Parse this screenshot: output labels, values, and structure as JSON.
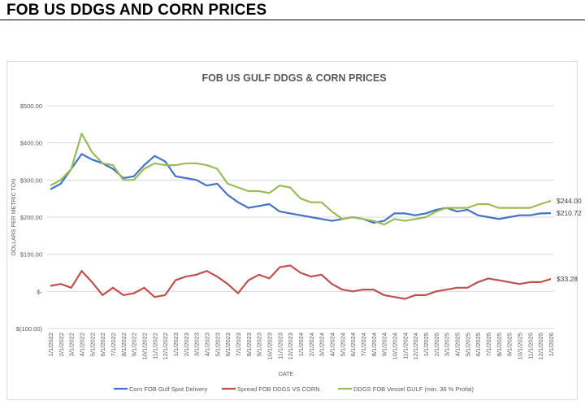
{
  "page": {
    "title": "FOB US DDGS AND CORN PRICES"
  },
  "chart_data": {
    "type": "line",
    "title": "FOB US GULF DDGS & CORN PRICES",
    "xlabel": "DATE",
    "ylabel": "DOLLARS PER METRIC TON",
    "ylim": [
      -100,
      500
    ],
    "yticks": [
      500,
      400,
      300,
      200,
      100,
      0,
      -100
    ],
    "ytick_labels": [
      "$500.00",
      "$400.00",
      "$300.00",
      "$200.00",
      "$100.00",
      "$-",
      "$(100.00)"
    ],
    "grid": true,
    "legend_position": "bottom",
    "x": [
      "1/1/2022",
      "2/1/2022",
      "3/1/2022",
      "4/1/2022",
      "5/1/2022",
      "6/1/2022",
      "7/1/2022",
      "8/1/2022",
      "9/1/2022",
      "10/1/2022",
      "11/1/2022",
      "12/1/2022",
      "1/1/2023",
      "2/1/2023",
      "3/1/2023",
      "4/1/2023",
      "5/1/2023",
      "6/1/2023",
      "7/1/2023",
      "8/1/2023",
      "9/1/2023",
      "10/1/2023",
      "11/1/2023",
      "12/1/2023",
      "1/1/2024",
      "2/1/2024",
      "3/1/2024",
      "4/1/2024",
      "5/1/2024",
      "6/1/2024",
      "7/1/2024",
      "8/1/2024",
      "9/1/2024",
      "10/1/2024",
      "11/1/2024",
      "12/1/2024",
      "1/1/2025",
      "2/1/2025",
      "3/1/2025",
      "4/1/2025",
      "5/1/2025",
      "6/1/2025",
      "7/1/2025",
      "8/1/2025",
      "9/1/2025",
      "10/1/2025",
      "11/1/2025",
      "12/1/2025",
      "1/1/2026"
    ],
    "series": [
      {
        "name": "Corn FOB Gulf Spot Delivery",
        "color": "#4472c4",
        "end_label": "$210.72",
        "values": [
          275,
          290,
          330,
          370,
          355,
          345,
          330,
          305,
          310,
          340,
          365,
          350,
          310,
          305,
          300,
          285,
          290,
          260,
          240,
          225,
          230,
          235,
          215,
          210,
          205,
          200,
          195,
          190,
          195,
          200,
          195,
          185,
          190,
          210,
          210,
          205,
          210,
          220,
          225,
          215,
          220,
          205,
          200,
          195,
          200,
          205,
          205,
          210,
          210.72
        ]
      },
      {
        "name": "Spread FOB DDGS VS CORN",
        "color": "#c0504d",
        "end_label": "$33.28",
        "values": [
          15,
          20,
          10,
          55,
          25,
          -10,
          10,
          -10,
          -5,
          10,
          -15,
          -10,
          30,
          40,
          45,
          55,
          40,
          20,
          -5,
          30,
          45,
          35,
          65,
          70,
          50,
          40,
          45,
          20,
          5,
          0,
          5,
          5,
          -10,
          -15,
          -20,
          -10,
          -10,
          0,
          5,
          10,
          10,
          25,
          35,
          30,
          25,
          20,
          25,
          25,
          33.28
        ]
      },
      {
        "name": "DDGS FOB Vessel GULF  (min. 36 % Profat)",
        "color": "#9bbb59",
        "end_label": "$244.00",
        "values": [
          285,
          300,
          330,
          425,
          375,
          345,
          340,
          300,
          300,
          330,
          345,
          340,
          340,
          345,
          345,
          340,
          330,
          290,
          280,
          270,
          270,
          265,
          285,
          280,
          250,
          240,
          240,
          215,
          195,
          200,
          195,
          190,
          180,
          195,
          190,
          195,
          200,
          215,
          225,
          225,
          225,
          235,
          235,
          225,
          225,
          225,
          225,
          235,
          244
        ]
      }
    ]
  }
}
